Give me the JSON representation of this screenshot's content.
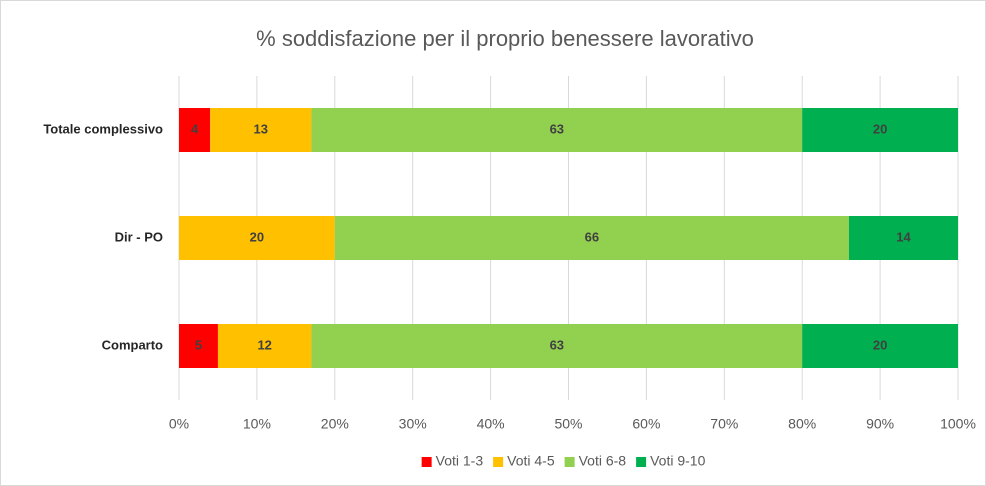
{
  "chart_data": {
    "type": "stacked-bar-horizontal",
    "title": "% soddisfazione per il proprio benessere lavorativo",
    "categories": [
      "Totale complessivo",
      "Dir - PO",
      "Comparto"
    ],
    "series": [
      {
        "name": "Voti 1-3",
        "color": "#ff0000",
        "values": [
          4,
          null,
          5
        ]
      },
      {
        "name": "Voti 4-5",
        "color": "#ffc000",
        "values": [
          13,
          20,
          12
        ]
      },
      {
        "name": "Voti 6-8",
        "color": "#92d050",
        "values": [
          63,
          66,
          63
        ]
      },
      {
        "name": "Voti 9-10",
        "color": "#00b050",
        "values": [
          20,
          14,
          20
        ]
      }
    ],
    "xlim": [
      0,
      100
    ],
    "xticks": [
      {
        "value": 0,
        "label": "0%"
      },
      {
        "value": 10,
        "label": "10%"
      },
      {
        "value": 20,
        "label": "20%"
      },
      {
        "value": 30,
        "label": "30%"
      },
      {
        "value": 40,
        "label": "40%"
      },
      {
        "value": 50,
        "label": "50%"
      },
      {
        "value": 60,
        "label": "60%"
      },
      {
        "value": 70,
        "label": "70%"
      },
      {
        "value": 80,
        "label": "80%"
      },
      {
        "value": 90,
        "label": "90%"
      },
      {
        "value": 100,
        "label": "100%"
      }
    ],
    "grid": true,
    "legend": "bottom"
  }
}
